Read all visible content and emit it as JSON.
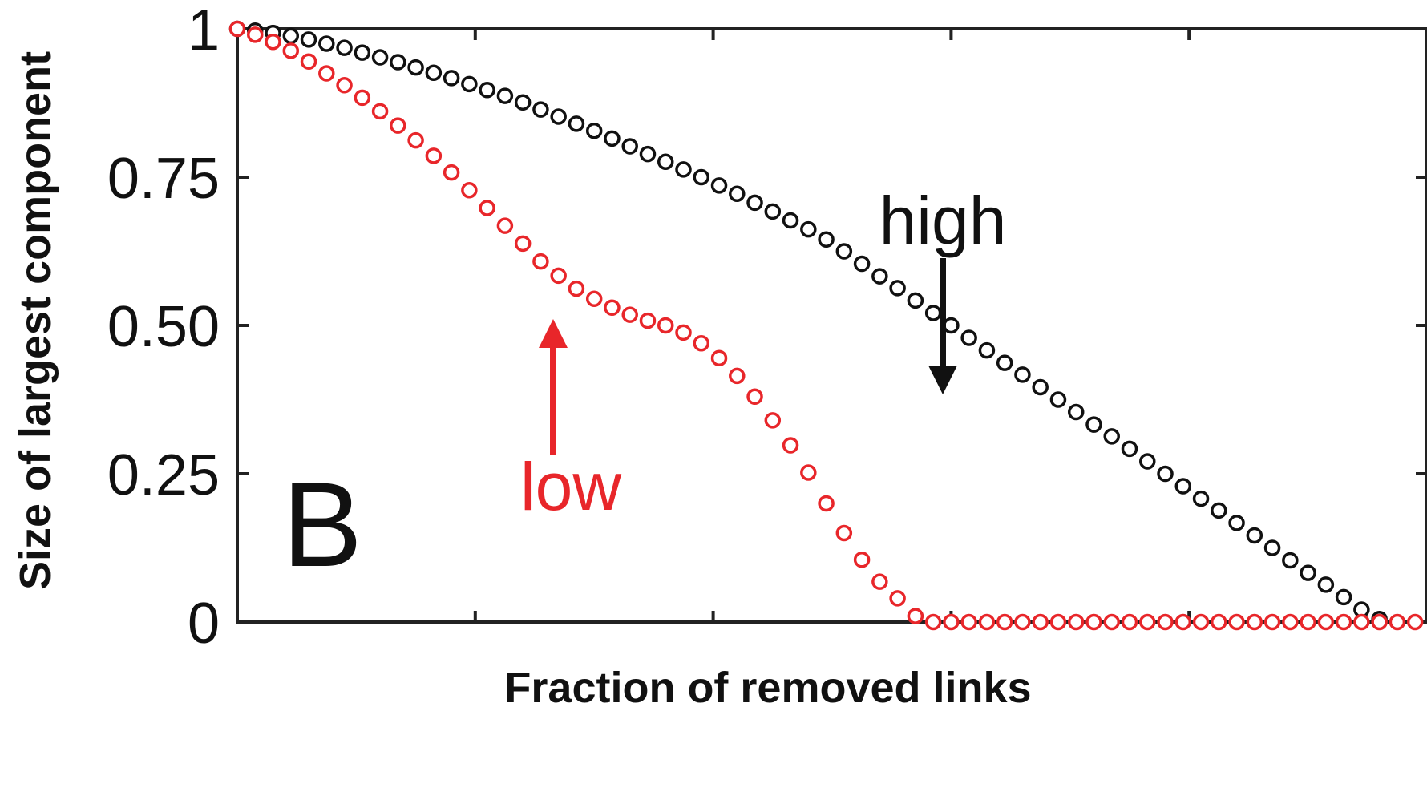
{
  "chart_data": {
    "type": "scatter",
    "panel_label": "B",
    "xlabel": "Fraction of removed links",
    "ylabel": "Size of largest component",
    "xlim": [
      0,
      1
    ],
    "ylim": [
      0,
      1
    ],
    "yticks": [
      {
        "value": 0,
        "label": "0"
      },
      {
        "value": 0.25,
        "label": "0.25"
      },
      {
        "value": 0.5,
        "label": "0.50"
      },
      {
        "value": 0.75,
        "label": "0.75"
      },
      {
        "value": 1,
        "label": "1"
      }
    ],
    "xticks": [
      0,
      0.2,
      0.4,
      0.6,
      0.8,
      1.0
    ],
    "x_tick_labels_shown": false,
    "grid": false,
    "series": [
      {
        "name": "high",
        "color": "#111111",
        "x": [
          0.0,
          0.015,
          0.03,
          0.045,
          0.06,
          0.075,
          0.09,
          0.105,
          0.12,
          0.135,
          0.15,
          0.165,
          0.18,
          0.195,
          0.21,
          0.225,
          0.24,
          0.255,
          0.27,
          0.285,
          0.3,
          0.315,
          0.33,
          0.345,
          0.36,
          0.375,
          0.39,
          0.405,
          0.42,
          0.435,
          0.45,
          0.465,
          0.48,
          0.495,
          0.51,
          0.525,
          0.54,
          0.555,
          0.57,
          0.585,
          0.6,
          0.615,
          0.63,
          0.645,
          0.66,
          0.675,
          0.69,
          0.705,
          0.72,
          0.735,
          0.75,
          0.765,
          0.78,
          0.795,
          0.81,
          0.825,
          0.84,
          0.855,
          0.87,
          0.885,
          0.9,
          0.915,
          0.93,
          0.945,
          0.96
        ],
        "y": [
          1.0,
          0.997,
          0.993,
          0.988,
          0.982,
          0.975,
          0.968,
          0.96,
          0.952,
          0.944,
          0.935,
          0.926,
          0.917,
          0.907,
          0.897,
          0.887,
          0.876,
          0.864,
          0.852,
          0.84,
          0.828,
          0.815,
          0.802,
          0.789,
          0.776,
          0.763,
          0.75,
          0.736,
          0.722,
          0.707,
          0.692,
          0.677,
          0.662,
          0.645,
          0.625,
          0.604,
          0.583,
          0.563,
          0.542,
          0.521,
          0.5,
          0.479,
          0.458,
          0.437,
          0.417,
          0.396,
          0.375,
          0.354,
          0.333,
          0.313,
          0.292,
          0.271,
          0.25,
          0.229,
          0.208,
          0.188,
          0.167,
          0.146,
          0.125,
          0.104,
          0.083,
          0.063,
          0.042,
          0.021,
          0.005
        ]
      },
      {
        "name": "low",
        "color": "#e8262a",
        "x": [
          0.0,
          0.015,
          0.03,
          0.045,
          0.06,
          0.075,
          0.09,
          0.105,
          0.12,
          0.135,
          0.15,
          0.165,
          0.18,
          0.195,
          0.21,
          0.225,
          0.24,
          0.255,
          0.27,
          0.285,
          0.3,
          0.315,
          0.33,
          0.345,
          0.36,
          0.375,
          0.39,
          0.405,
          0.42,
          0.435,
          0.45,
          0.465,
          0.48,
          0.495,
          0.51,
          0.525,
          0.54,
          0.555,
          0.57,
          0.585,
          0.6,
          0.615,
          0.63,
          0.645,
          0.66,
          0.675,
          0.69,
          0.705,
          0.72,
          0.735,
          0.75,
          0.765,
          0.78,
          0.795,
          0.81,
          0.825,
          0.84,
          0.855,
          0.87,
          0.885,
          0.9,
          0.915,
          0.93,
          0.945,
          0.96,
          0.975,
          0.99
        ],
        "y": [
          1.0,
          0.99,
          0.978,
          0.963,
          0.945,
          0.925,
          0.905,
          0.884,
          0.861,
          0.837,
          0.812,
          0.786,
          0.758,
          0.728,
          0.698,
          0.668,
          0.638,
          0.608,
          0.584,
          0.562,
          0.545,
          0.53,
          0.518,
          0.508,
          0.5,
          0.488,
          0.47,
          0.445,
          0.415,
          0.38,
          0.34,
          0.298,
          0.252,
          0.2,
          0.15,
          0.105,
          0.068,
          0.04,
          0.01,
          0.0,
          0.0,
          0.0,
          0.0,
          0.0,
          0.0,
          0.0,
          0.0,
          0.0,
          0.0,
          0.0,
          0.0,
          0.0,
          0.0,
          0.0,
          0.0,
          0.0,
          0.0,
          0.0,
          0.0,
          0.0,
          0.0,
          0.0,
          0.0,
          0.0,
          0.0,
          0.0,
          0.0
        ]
      }
    ],
    "annotations": [
      {
        "text": "high",
        "color": "#111111",
        "arrow": "down",
        "points_to": {
          "x": 0.695,
          "y": 0.39
        }
      },
      {
        "text": "low",
        "color": "#e8262a",
        "arrow": "up",
        "points_to": {
          "x": 0.31,
          "y": 0.49
        }
      }
    ]
  }
}
